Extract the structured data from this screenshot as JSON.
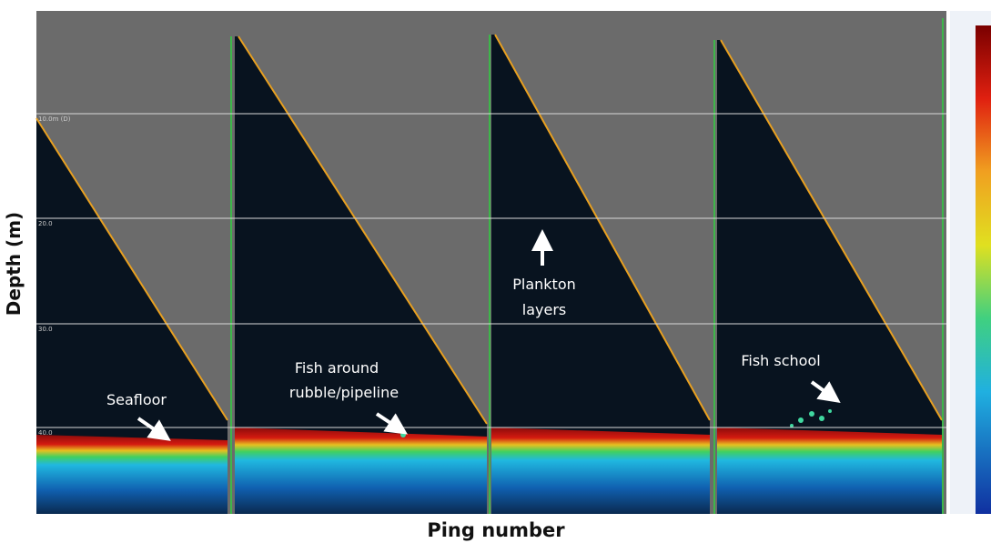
{
  "axes": {
    "y_label": "Depth (m)",
    "x_label": "Ping number"
  },
  "depth_labels": [
    "10.0m (D)",
    "20.0",
    "30.0",
    "40.0"
  ],
  "annotations": {
    "seafloor": "Seafloor",
    "fish_rubble": [
      "Fish around",
      "rubble/pipeline"
    ],
    "plankton": [
      "Plankton",
      "layers"
    ],
    "fish_school": "Fish school"
  }
}
